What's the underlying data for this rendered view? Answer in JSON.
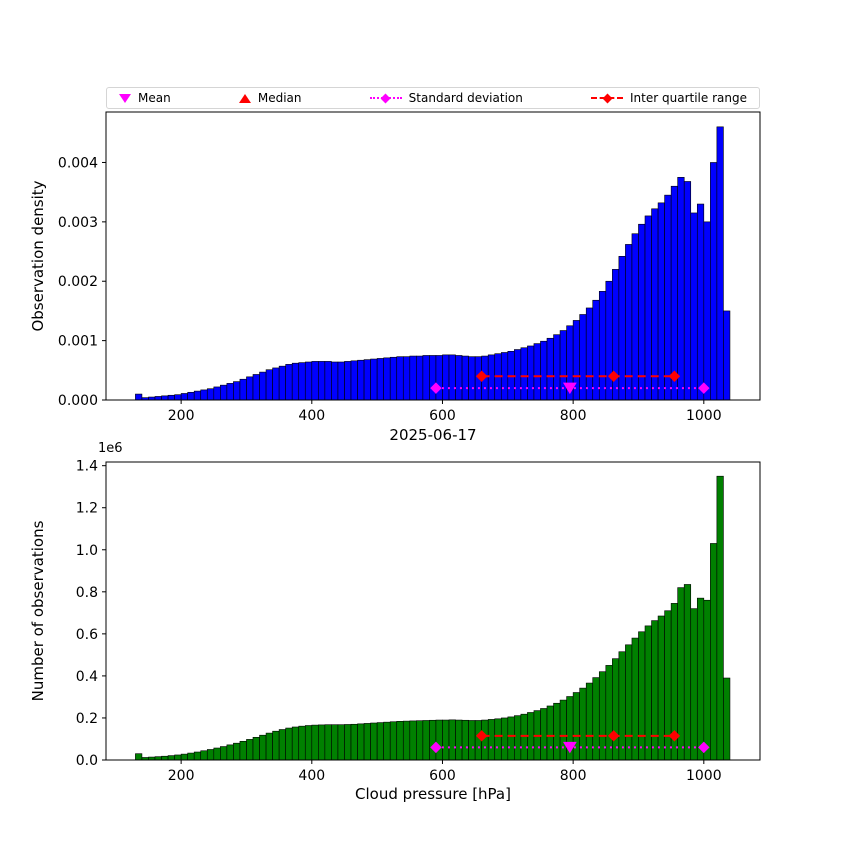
{
  "figure": {
    "title": "2025-06-17",
    "xlabel": "Cloud pressure [hPa]",
    "background": "#ffffff"
  },
  "legend": {
    "items": [
      {
        "label": "Mean",
        "marker": "triangle-down",
        "color": "#ff00ff"
      },
      {
        "label": "Median",
        "marker": "triangle-up",
        "color": "#ff0000"
      },
      {
        "label": "Standard deviation",
        "marker": "diamond-dotted-line",
        "color": "#ff00ff"
      },
      {
        "label": "Inter quartile range",
        "marker": "diamond-dashed-line",
        "color": "#ff0000"
      }
    ]
  },
  "chart_data": [
    {
      "type": "bar",
      "subtype": "histogram",
      "ylabel": "Observation density",
      "bar_color": "#0000ff",
      "bin_start": 130,
      "bin_width": 10,
      "xlim": [
        85,
        1086
      ],
      "ylim": [
        0,
        0.00485
      ],
      "yticks": [
        0,
        0.001,
        0.002,
        0.003,
        0.004
      ],
      "ytick_labels": [
        "0.000",
        "0.001",
        "0.002",
        "0.003",
        "0.004"
      ],
      "xticks": [
        200,
        400,
        600,
        800,
        1000
      ],
      "xtick_labels": [
        "200",
        "400",
        "600",
        "800",
        "1000"
      ],
      "values": [
        0.0001,
        4e-05,
        5e-05,
        6e-05,
        7e-05,
        8e-05,
        9e-05,
        0.00011,
        0.00013,
        0.00015,
        0.00017,
        0.00019,
        0.00022,
        0.00025,
        0.00028,
        0.00031,
        0.00035,
        0.00039,
        0.00043,
        0.00047,
        0.00051,
        0.00054,
        0.00057,
        0.0006,
        0.00062,
        0.00063,
        0.00064,
        0.00065,
        0.00065,
        0.00065,
        0.00064,
        0.00064,
        0.00065,
        0.00066,
        0.00067,
        0.00068,
        0.00069,
        0.0007,
        0.00071,
        0.00072,
        0.00073,
        0.00073,
        0.00074,
        0.00074,
        0.00075,
        0.00075,
        0.00075,
        0.00076,
        0.00076,
        0.00075,
        0.00074,
        0.00073,
        0.00073,
        0.00074,
        0.00076,
        0.00078,
        0.0008,
        0.00082,
        0.00085,
        0.00088,
        0.00091,
        0.00095,
        0.00099,
        0.00104,
        0.0011,
        0.00117,
        0.00125,
        0.00134,
        0.00144,
        0.00155,
        0.00168,
        0.00183,
        0.002,
        0.0022,
        0.00242,
        0.00262,
        0.0028,
        0.00296,
        0.0031,
        0.00322,
        0.00332,
        0.00345,
        0.0036,
        0.00375,
        0.00368,
        0.00315,
        0.0033,
        0.003,
        0.004,
        0.0046,
        0.0015
      ],
      "markers": {
        "mean": {
          "x": 795
        },
        "median": {
          "x": 862
        },
        "std": {
          "x1": 590,
          "x2": 1000,
          "y": 0.0002,
          "color": "#ff00ff"
        },
        "iqr": {
          "x1": 660,
          "x2": 955,
          "y": 0.0004,
          "color": "#ff0000"
        }
      }
    },
    {
      "type": "bar",
      "subtype": "histogram",
      "ylabel": "Number of observations",
      "offset_text": "1e6",
      "bar_color": "#008000",
      "bin_start": 130,
      "bin_width": 10,
      "xlim": [
        85,
        1086
      ],
      "ylim": [
        0,
        1.4175
      ],
      "yticks": [
        0,
        0.2,
        0.4,
        0.6,
        0.8,
        1.0,
        1.2,
        1.4
      ],
      "ytick_labels": [
        "0.0",
        "0.2",
        "0.4",
        "0.6",
        "0.8",
        "1.0",
        "1.2",
        "1.4"
      ],
      "xticks": [
        200,
        400,
        600,
        800,
        1000
      ],
      "xtick_labels": [
        "200",
        "400",
        "600",
        "800",
        "1000"
      ],
      "values": [
        0.03,
        0.012,
        0.014,
        0.016,
        0.018,
        0.021,
        0.024,
        0.028,
        0.033,
        0.038,
        0.044,
        0.05,
        0.057,
        0.064,
        0.072,
        0.08,
        0.089,
        0.098,
        0.108,
        0.118,
        0.128,
        0.137,
        0.145,
        0.152,
        0.157,
        0.161,
        0.164,
        0.166,
        0.167,
        0.168,
        0.168,
        0.168,
        0.169,
        0.17,
        0.172,
        0.174,
        0.176,
        0.178,
        0.18,
        0.182,
        0.184,
        0.185,
        0.186,
        0.187,
        0.188,
        0.189,
        0.19,
        0.19,
        0.191,
        0.19,
        0.189,
        0.188,
        0.188,
        0.19,
        0.193,
        0.196,
        0.2,
        0.205,
        0.211,
        0.218,
        0.226,
        0.235,
        0.245,
        0.257,
        0.27,
        0.285,
        0.302,
        0.321,
        0.342,
        0.366,
        0.392,
        0.42,
        0.45,
        0.482,
        0.515,
        0.548,
        0.58,
        0.61,
        0.638,
        0.663,
        0.685,
        0.71,
        0.745,
        0.82,
        0.835,
        0.72,
        0.77,
        0.76,
        1.03,
        1.35,
        0.39
      ],
      "markers": {
        "mean": {
          "x": 795
        },
        "median": {
          "x": 862
        },
        "std": {
          "x1": 590,
          "x2": 1000,
          "y": 0.06,
          "color": "#ff00ff"
        },
        "iqr": {
          "x1": 660,
          "x2": 955,
          "y": 0.115,
          "color": "#ff0000"
        }
      }
    }
  ]
}
